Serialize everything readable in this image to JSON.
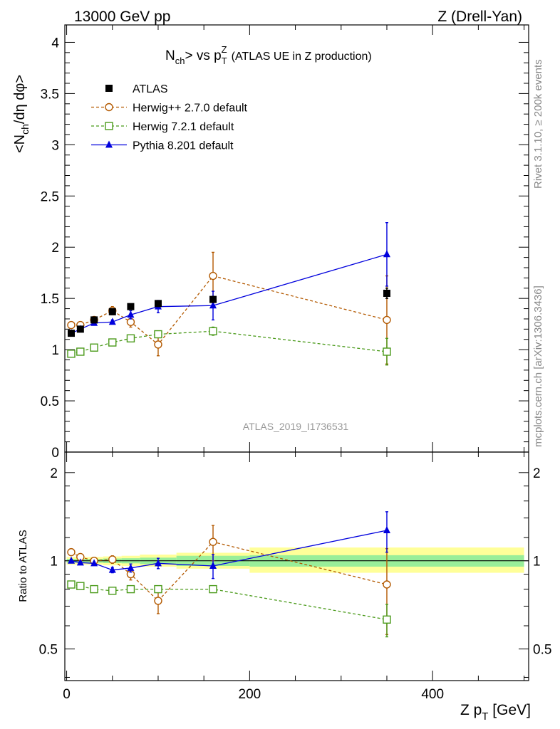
{
  "header": {
    "left": "13000 GeV pp",
    "right": "Z (Drell-Yan)"
  },
  "side_text": {
    "top": "Rivet 3.1.10, ≥ 200k events",
    "bottom": "mcplots.cern.ch [arXiv:1306.3436]"
  },
  "watermark": "ATLAS_2019_I1736531",
  "chart_data": [
    {
      "type": "scatter",
      "panel": "main",
      "title": "<N_ch> vs p_T^Z (ATLAS UE in Z production)",
      "title_parts": {
        "n": "N",
        "ch": "ch",
        "vs": "vs p",
        "t": "T",
        "z": "Z",
        "rest": "(ATLAS UE in Z production)"
      },
      "ylabel": "<N_ch/dη dφ>",
      "ylabel_parts": {
        "pre": "<N",
        "sub": "ch",
        "post": "/dη dφ>"
      },
      "xlim": [
        -2,
        505
      ],
      "ylim": [
        0,
        4.17
      ],
      "yticks": [
        0,
        0.5,
        1,
        1.5,
        2,
        2.5,
        3,
        3.5,
        4
      ],
      "ytick_labels": [
        "0",
        "0.5",
        "1",
        "1.5",
        "2",
        "2.5",
        "3",
        "3.5",
        "4"
      ],
      "legend_position": "top-left",
      "series": [
        {
          "name": "ATLAS",
          "style": "data",
          "color": "#000000",
          "marker": "square-filled",
          "x": [
            5,
            15,
            30,
            50,
            70,
            100,
            160,
            350
          ],
          "xerr": [
            5,
            5,
            10,
            10,
            10,
            20,
            40,
            150
          ],
          "y": [
            1.16,
            1.2,
            1.29,
            1.37,
            1.42,
            1.45,
            1.49,
            1.55
          ],
          "yerr": [
            0.01,
            0.01,
            0.01,
            0.01,
            0.01,
            0.02,
            0.03,
            0.05
          ]
        },
        {
          "name": "Herwig++ 2.7.0 default",
          "style": "dashed",
          "color": "#b35900",
          "marker": "circle-open",
          "x": [
            5,
            15,
            30,
            50,
            70,
            100,
            160,
            350
          ],
          "y": [
            1.24,
            1.24,
            1.29,
            1.38,
            1.27,
            1.05,
            1.72,
            1.29
          ],
          "yerr": [
            0.01,
            0.01,
            0.02,
            0.04,
            0.05,
            0.11,
            0.23,
            0.43
          ]
        },
        {
          "name": "Herwig 7.2.1 default",
          "style": "dashed",
          "color": "#4a9a1a",
          "marker": "square-open",
          "x": [
            5,
            15,
            30,
            50,
            70,
            100,
            160,
            350
          ],
          "y": [
            0.96,
            0.98,
            1.02,
            1.07,
            1.11,
            1.15,
            1.18,
            0.98
          ],
          "yerr": [
            0.01,
            0.01,
            0.01,
            0.01,
            0.02,
            0.02,
            0.04,
            0.13
          ]
        },
        {
          "name": "Pythia 8.201 default",
          "style": "solid",
          "color": "#0000dd",
          "marker": "triangle-filled",
          "x": [
            5,
            15,
            30,
            50,
            70,
            100,
            160,
            350
          ],
          "y": [
            1.16,
            1.2,
            1.26,
            1.27,
            1.34,
            1.42,
            1.43,
            1.93
          ],
          "yerr": [
            0.01,
            0.01,
            0.02,
            0.02,
            0.04,
            0.06,
            0.14,
            0.31
          ]
        }
      ]
    },
    {
      "type": "scatter",
      "panel": "ratio",
      "ylabel": "Ratio to ATLAS",
      "xlabel": "Z p_T [GeV]",
      "xlabel_parts": {
        "pre": "Z p",
        "sub": "T",
        "post": "[GeV]"
      },
      "xlim": [
        -2,
        505
      ],
      "ylim": [
        0.39,
        2.35
      ],
      "yscale": "log",
      "xticks": [
        0,
        200,
        400
      ],
      "xtick_labels": [
        "0",
        "200",
        "400"
      ],
      "yticks": [
        0.5,
        1,
        2
      ],
      "ytick_labels": [
        "0.5",
        "1",
        "2"
      ],
      "uncertainty_bands": [
        {
          "x0": 0,
          "x1": 10,
          "inner": [
            0.985,
            1.015
          ],
          "outer": [
            0.97,
            1.03
          ]
        },
        {
          "x0": 10,
          "x1": 20,
          "inner": [
            0.985,
            1.015
          ],
          "outer": [
            0.97,
            1.03
          ]
        },
        {
          "x0": 20,
          "x1": 40,
          "inner": [
            0.985,
            1.015
          ],
          "outer": [
            0.97,
            1.03
          ]
        },
        {
          "x0": 40,
          "x1": 60,
          "inner": [
            0.982,
            1.018
          ],
          "outer": [
            0.965,
            1.035
          ]
        },
        {
          "x0": 60,
          "x1": 80,
          "inner": [
            0.98,
            1.02
          ],
          "outer": [
            0.96,
            1.04
          ]
        },
        {
          "x0": 80,
          "x1": 120,
          "inner": [
            0.975,
            1.025
          ],
          "outer": [
            0.955,
            1.05
          ]
        },
        {
          "x0": 120,
          "x1": 200,
          "inner": [
            0.96,
            1.04
          ],
          "outer": [
            0.94,
            1.065
          ]
        },
        {
          "x0": 200,
          "x1": 500,
          "inner": [
            0.955,
            1.045
          ],
          "outer": [
            0.91,
            1.11
          ]
        }
      ],
      "series": [
        {
          "name": "Herwig++ 2.7.0 default",
          "style": "dashed",
          "color": "#b35900",
          "marker": "circle-open",
          "x": [
            5,
            15,
            30,
            50,
            70,
            100,
            160,
            350
          ],
          "y": [
            1.07,
            1.03,
            1.0,
            1.01,
            0.9,
            0.73,
            1.16,
            0.83
          ],
          "yerr": [
            0.01,
            0.01,
            0.02,
            0.03,
            0.04,
            0.07,
            0.16,
            0.27
          ]
        },
        {
          "name": "Herwig 7.2.1 default",
          "style": "dashed",
          "color": "#4a9a1a",
          "marker": "square-open",
          "x": [
            5,
            15,
            30,
            50,
            70,
            100,
            160,
            350
          ],
          "y": [
            0.83,
            0.82,
            0.8,
            0.79,
            0.8,
            0.8,
            0.8,
            0.63
          ],
          "yerr": [
            0.01,
            0.01,
            0.01,
            0.01,
            0.01,
            0.01,
            0.02,
            0.08
          ]
        },
        {
          "name": "Pythia 8.201 default",
          "style": "solid",
          "color": "#0000dd",
          "marker": "triangle-filled",
          "x": [
            5,
            15,
            30,
            50,
            70,
            100,
            160,
            350
          ],
          "y": [
            1.0,
            0.985,
            0.98,
            0.93,
            0.945,
            0.98,
            0.96,
            1.27
          ],
          "yerr": [
            0.01,
            0.01,
            0.01,
            0.02,
            0.03,
            0.04,
            0.09,
            0.2
          ]
        }
      ]
    }
  ]
}
